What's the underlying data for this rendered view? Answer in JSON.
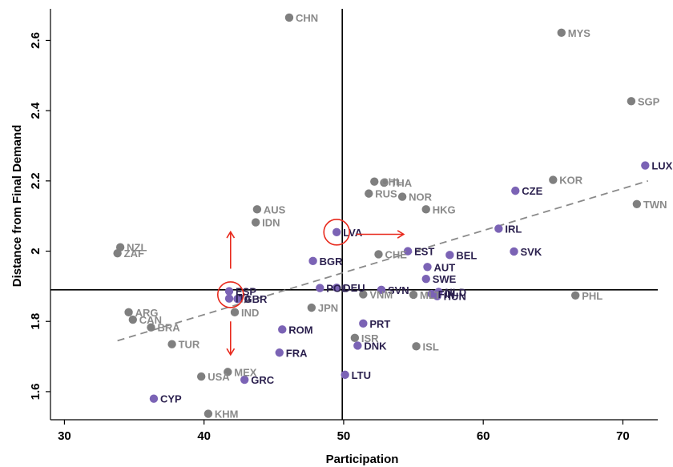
{
  "chart_data": {
    "type": "scatter",
    "xlabel": "Participation",
    "ylabel": "Distance from Final Demand",
    "xlim": [
      29,
      72.5
    ],
    "ylim": [
      1.52,
      2.69
    ],
    "xticks": [
      "30",
      "40",
      "50",
      "60",
      "70"
    ],
    "xtick_values": [
      30,
      40,
      50,
      60,
      70
    ],
    "yticks": [
      "1.6",
      "1.8",
      "2",
      "2.2",
      "2.4",
      "2.6"
    ],
    "ytick_values": [
      1.6,
      1.8,
      2.0,
      2.2,
      2.4,
      2.6
    ],
    "reference_lines": {
      "x": 49.9,
      "y": 1.89
    },
    "trendline": {
      "x": [
        33.8,
        71.8
      ],
      "y": [
        1.745,
        2.2
      ],
      "style": "dashed"
    },
    "colors": {
      "eu": "#7b63b5",
      "non_eu": "#7f7f7f",
      "eu_label": "#2a1f4d",
      "non_eu_label": "#8a8a8a",
      "annotation": "#e8291c"
    },
    "groups": [
      {
        "key": "eu",
        "color": "#7b63b5"
      },
      {
        "key": "non_eu",
        "color": "#7f7f7f"
      }
    ],
    "points": [
      {
        "label": "CHN",
        "x": 46.1,
        "y": 2.665,
        "group": "non_eu"
      },
      {
        "label": "MYS",
        "x": 65.6,
        "y": 2.622,
        "group": "non_eu"
      },
      {
        "label": "SGP",
        "x": 70.6,
        "y": 2.427,
        "group": "non_eu"
      },
      {
        "label": "LUX",
        "x": 71.6,
        "y": 2.244,
        "group": "eu"
      },
      {
        "label": "CHL",
        "x": 52.2,
        "y": 2.198,
        "group": "non_eu"
      },
      {
        "label": "THA",
        "x": 52.9,
        "y": 2.195,
        "group": "non_eu"
      },
      {
        "label": "KOR",
        "x": 65.0,
        "y": 2.203,
        "group": "non_eu"
      },
      {
        "label": "CZE",
        "x": 62.3,
        "y": 2.172,
        "group": "eu"
      },
      {
        "label": "RUS",
        "x": 51.8,
        "y": 2.164,
        "group": "non_eu"
      },
      {
        "label": "NOR",
        "x": 54.2,
        "y": 2.155,
        "group": "non_eu"
      },
      {
        "label": "TWN",
        "x": 71.0,
        "y": 2.134,
        "group": "non_eu"
      },
      {
        "label": "AUS",
        "x": 43.8,
        "y": 2.119,
        "group": "non_eu"
      },
      {
        "label": "HKG",
        "x": 55.9,
        "y": 2.119,
        "group": "non_eu"
      },
      {
        "label": "IDN",
        "x": 43.7,
        "y": 2.082,
        "group": "non_eu"
      },
      {
        "label": "IRL",
        "x": 61.1,
        "y": 2.064,
        "group": "eu"
      },
      {
        "label": "LVA",
        "x": 49.5,
        "y": 2.054,
        "group": "eu"
      },
      {
        "label": "NZL",
        "x": 34.0,
        "y": 2.011,
        "group": "non_eu"
      },
      {
        "label": "ZAF",
        "x": 33.8,
        "y": 1.994,
        "group": "non_eu"
      },
      {
        "label": "EST",
        "x": 54.6,
        "y": 2.0,
        "group": "eu"
      },
      {
        "label": "SVK",
        "x": 62.2,
        "y": 1.999,
        "group": "eu"
      },
      {
        "label": "CHE",
        "x": 52.5,
        "y": 1.991,
        "group": "non_eu"
      },
      {
        "label": "BEL",
        "x": 57.6,
        "y": 1.989,
        "group": "eu"
      },
      {
        "label": "BGR",
        "x": 47.8,
        "y": 1.972,
        "group": "eu"
      },
      {
        "label": "AUT",
        "x": 56.0,
        "y": 1.955,
        "group": "eu"
      },
      {
        "label": "SWE",
        "x": 55.9,
        "y": 1.921,
        "group": "eu"
      },
      {
        "label": "POL",
        "x": 48.3,
        "y": 1.895,
        "group": "eu"
      },
      {
        "label": "DEU",
        "x": 49.5,
        "y": 1.896,
        "group": "eu"
      },
      {
        "label": "ESP",
        "x": 41.8,
        "y": 1.886,
        "group": "eu"
      },
      {
        "label": "SVN",
        "x": 52.7,
        "y": 1.89,
        "group": "eu"
      },
      {
        "label": "NLD",
        "x": 56.8,
        "y": 1.884,
        "group": "eu"
      },
      {
        "label": "VNM",
        "x": 51.4,
        "y": 1.877,
        "group": "non_eu"
      },
      {
        "label": "MLT",
        "x": 55.0,
        "y": 1.876,
        "group": "non_eu"
      },
      {
        "label": "FIN",
        "x": 56.3,
        "y": 1.878,
        "group": "eu"
      },
      {
        "label": "HUN",
        "x": 56.7,
        "y": 1.872,
        "group": "eu"
      },
      {
        "label": "PHL",
        "x": 66.6,
        "y": 1.874,
        "group": "non_eu"
      },
      {
        "label": "ITA",
        "x": 41.8,
        "y": 1.865,
        "group": "eu"
      },
      {
        "label": "GBR",
        "x": 42.4,
        "y": 1.864,
        "group": "eu"
      },
      {
        "label": "JPN",
        "x": 47.7,
        "y": 1.839,
        "group": "non_eu"
      },
      {
        "label": "IND",
        "x": 42.2,
        "y": 1.826,
        "group": "non_eu"
      },
      {
        "label": "ARG",
        "x": 34.6,
        "y": 1.826,
        "group": "non_eu"
      },
      {
        "label": "CAN",
        "x": 34.9,
        "y": 1.805,
        "group": "non_eu"
      },
      {
        "label": "BRA",
        "x": 36.2,
        "y": 1.783,
        "group": "non_eu"
      },
      {
        "label": "PRT",
        "x": 51.4,
        "y": 1.794,
        "group": "eu"
      },
      {
        "label": "ROM",
        "x": 45.6,
        "y": 1.777,
        "group": "eu"
      },
      {
        "label": "ISR",
        "x": 50.8,
        "y": 1.753,
        "group": "non_eu"
      },
      {
        "label": "TUR",
        "x": 37.7,
        "y": 1.735,
        "group": "non_eu"
      },
      {
        "label": "DNK",
        "x": 51.0,
        "y": 1.731,
        "group": "eu"
      },
      {
        "label": "ISL",
        "x": 55.2,
        "y": 1.729,
        "group": "non_eu"
      },
      {
        "label": "FRA",
        "x": 45.4,
        "y": 1.711,
        "group": "eu"
      },
      {
        "label": "MEX",
        "x": 41.7,
        "y": 1.656,
        "group": "non_eu"
      },
      {
        "label": "USA",
        "x": 39.8,
        "y": 1.643,
        "group": "non_eu"
      },
      {
        "label": "LTU",
        "x": 50.1,
        "y": 1.648,
        "group": "eu"
      },
      {
        "label": "GRC",
        "x": 42.9,
        "y": 1.634,
        "group": "eu"
      },
      {
        "label": "CYP",
        "x": 36.4,
        "y": 1.58,
        "group": "eu"
      },
      {
        "label": "KHM",
        "x": 40.3,
        "y": 1.537,
        "group": "non_eu"
      }
    ],
    "annotations": {
      "circles": [
        {
          "x": 49.5,
          "y": 2.054
        },
        {
          "x": 41.9,
          "y": 1.876
        }
      ],
      "arrows": [
        {
          "direction": "right",
          "from": [
            50.9,
            2.048
          ],
          "to": [
            54.3,
            2.048
          ]
        },
        {
          "direction": "up",
          "from": [
            41.9,
            1.95
          ],
          "to": [
            41.9,
            2.055
          ]
        },
        {
          "direction": "down",
          "from": [
            41.9,
            1.8
          ],
          "to": [
            41.9,
            1.705
          ]
        }
      ]
    }
  }
}
